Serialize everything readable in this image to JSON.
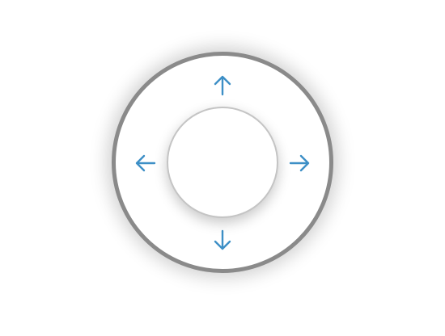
{
  "dpad": {
    "arrow_color": "#3d8fc6",
    "ring_border_color": "#8a8a8a",
    "center_border_color": "#c4c4c4",
    "buttons": {
      "up": {
        "icon": "arrow-up-icon"
      },
      "down": {
        "icon": "arrow-down-icon"
      },
      "left": {
        "icon": "arrow-left-icon"
      },
      "right": {
        "icon": "arrow-right-icon"
      }
    }
  }
}
